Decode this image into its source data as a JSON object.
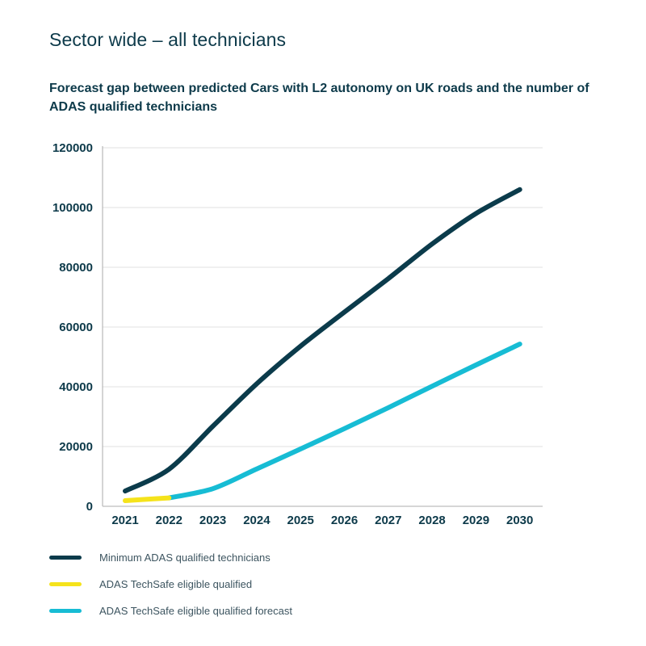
{
  "page": {
    "heading": "Sector wide – all technicians"
  },
  "chart_data": {
    "type": "line",
    "title": "Forecast gap between predicted Cars with L2 autonomy on UK roads and the number of ADAS qualified technicians",
    "xlabel": "",
    "ylabel": "",
    "x": [
      "2021",
      "2022",
      "2023",
      "2024",
      "2025",
      "2026",
      "2027",
      "2028",
      "2029",
      "2030"
    ],
    "ylim": [
      0,
      120000
    ],
    "yticks": [
      "0",
      "20000",
      "40000",
      "60000",
      "80000",
      "100000",
      "120000"
    ],
    "yticks_values": [
      0,
      20000,
      40000,
      60000,
      80000,
      100000,
      120000
    ],
    "grid": true,
    "legend_position": "bottom-left",
    "series": [
      {
        "name": "Minimum ADAS qualified technicians",
        "color": "#0b3b4b",
        "values": [
          5100,
          12400,
          26800,
          41000,
          53600,
          65000,
          76200,
          87800,
          98000,
          106000
        ]
      },
      {
        "name": "ADAS TechSafe eligible qualified",
        "color": "#f5e31b",
        "values": [
          1900,
          2800,
          null,
          null,
          null,
          null,
          null,
          null,
          null,
          null
        ]
      },
      {
        "name": "ADAS TechSafe eligible qualified forecast",
        "color": "#17bcd4",
        "values": [
          null,
          2800,
          5900,
          12500,
          19200,
          26000,
          33000,
          40200,
          47300,
          54300
        ]
      }
    ]
  }
}
